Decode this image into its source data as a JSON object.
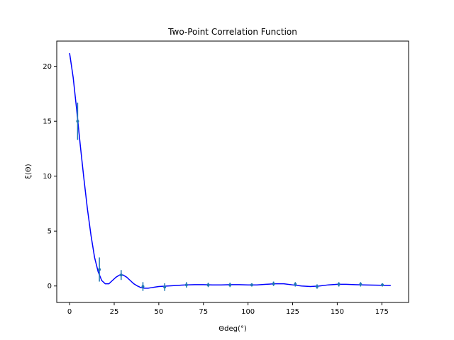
{
  "chart_data": {
    "type": "line",
    "title": "Two-Point Correlation Function",
    "xlabel": "Θdeg(°)",
    "ylabel": "ξ(Θ)",
    "xlim": [
      -7.2,
      190.0
    ],
    "ylim": [
      -1.5,
      22.3
    ],
    "xticks": [
      0,
      25,
      50,
      75,
      100,
      125,
      150,
      175
    ],
    "yticks": [
      0,
      5,
      10,
      15,
      20
    ],
    "grid": false,
    "series": [
      {
        "kind": "line",
        "color": "#0000ff",
        "x": [
          0,
          2,
          4,
          6,
          8,
          10,
          12,
          14,
          16,
          18,
          20,
          22,
          24,
          26,
          28,
          30,
          32,
          34,
          36,
          38,
          40,
          42,
          44,
          46,
          48,
          50,
          55,
          60,
          65,
          70,
          75,
          80,
          85,
          90,
          95,
          100,
          105,
          110,
          115,
          120,
          125,
          130,
          135,
          140,
          145,
          150,
          155,
          160,
          165,
          170,
          175,
          180
        ],
        "y": [
          21.2,
          19.0,
          16.0,
          12.8,
          9.8,
          7.0,
          4.6,
          2.6,
          1.3,
          0.5,
          0.2,
          0.2,
          0.5,
          0.8,
          1.0,
          1.0,
          0.8,
          0.5,
          0.2,
          0.0,
          -0.15,
          -0.2,
          -0.2,
          -0.15,
          -0.1,
          -0.05,
          0.0,
          0.05,
          0.1,
          0.12,
          0.12,
          0.1,
          0.1,
          0.12,
          0.12,
          0.1,
          0.1,
          0.15,
          0.2,
          0.2,
          0.1,
          0.0,
          -0.05,
          0.0,
          0.1,
          0.15,
          0.15,
          0.12,
          0.1,
          0.08,
          0.06,
          0.05
        ]
      },
      {
        "kind": "errorbar",
        "color": "#1f77b4",
        "x": [
          4.5,
          16.7,
          28.9,
          41.1,
          53.3,
          65.5,
          77.7,
          89.9,
          102.1,
          114.3,
          126.5,
          138.7,
          150.9,
          163.1,
          175.3
        ],
        "y": [
          15.0,
          1.5,
          1.0,
          -0.05,
          -0.1,
          0.1,
          0.1,
          0.1,
          0.1,
          0.2,
          0.15,
          -0.05,
          0.15,
          0.15,
          0.1
        ],
        "yerr": [
          1.7,
          1.1,
          0.45,
          0.4,
          0.35,
          0.25,
          0.2,
          0.2,
          0.15,
          0.2,
          0.2,
          0.2,
          0.2,
          0.2,
          0.15
        ]
      }
    ]
  }
}
